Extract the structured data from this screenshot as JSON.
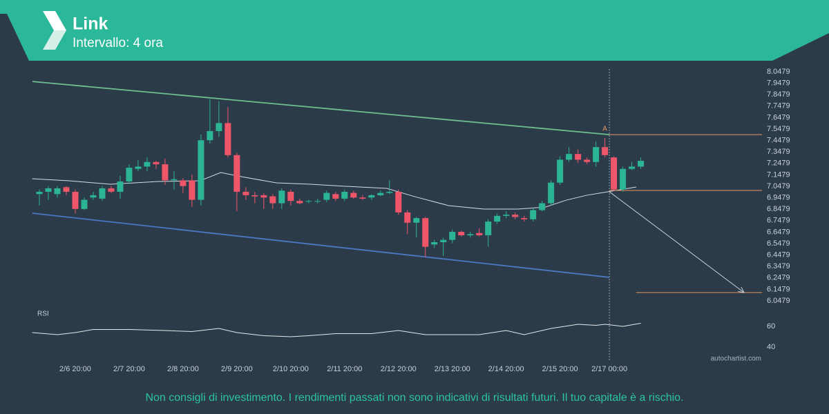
{
  "header": {
    "title": "Link",
    "subtitle": "Intervallo: 4 ora"
  },
  "footer": {
    "disclaimer": "Non consigli di investimento. I rendimenti passati non sono indicativi di risultati futuri. Il tuo capitale è a rischio.",
    "watermark": "autochartist.com"
  },
  "chart_data": {
    "type": "candlestick",
    "up_color": "#2bb594",
    "down_color": "#f0566a",
    "open": [
      6.98,
      7.0,
      6.98,
      7.04,
      7.0,
      6.85,
      6.95,
      6.94,
      7.03,
      7.0,
      7.09,
      7.2,
      7.22,
      7.26,
      7.24,
      7.1,
      7.1,
      7.1,
      6.93,
      7.45,
      7.53,
      7.6,
      7.32,
      7.0,
      6.97,
      6.97,
      6.96,
      6.9,
      7.0,
      6.92,
      6.92,
      6.92,
      6.93,
      6.98,
      6.94,
      6.99,
      6.95,
      6.95,
      6.97,
      6.99,
      7.0,
      6.82,
      6.73,
      6.77,
      6.54,
      6.56,
      6.58,
      6.65,
      6.62,
      6.64,
      6.62,
      6.74,
      6.79,
      6.8,
      6.77,
      6.76,
      6.84,
      6.9,
      7.08,
      7.28,
      7.33,
      7.28,
      7.26,
      7.39,
      7.3,
      7.02,
      7.2,
      7.22
    ],
    "high": [
      7.02,
      7.05,
      7.05,
      7.05,
      7.02,
      6.95,
      7.0,
      7.05,
      7.05,
      7.14,
      7.24,
      7.28,
      7.3,
      7.27,
      7.29,
      7.18,
      7.12,
      7.15,
      7.5,
      7.81,
      7.79,
      7.74,
      7.34,
      7.04,
      7.0,
      6.99,
      6.98,
      7.03,
      7.02,
      6.94,
      6.93,
      6.94,
      7.01,
      7.0,
      7.02,
      7.01,
      6.97,
      6.98,
      7.01,
      7.1,
      7.02,
      6.84,
      6.78,
      6.78,
      6.58,
      6.6,
      6.67,
      6.66,
      6.65,
      6.68,
      6.76,
      6.81,
      6.83,
      6.82,
      6.79,
      6.86,
      6.92,
      7.1,
      7.31,
      7.39,
      7.37,
      7.3,
      7.44,
      7.47,
      7.31,
      7.22,
      7.26,
      7.3
    ],
    "low": [
      6.88,
      6.93,
      6.95,
      6.97,
      6.81,
      6.84,
      6.93,
      6.92,
      6.99,
      6.94,
      7.07,
      7.18,
      7.18,
      7.2,
      7.06,
      7.02,
      6.99,
      6.87,
      6.88,
      7.42,
      7.48,
      7.3,
      6.83,
      6.93,
      6.9,
      6.85,
      6.85,
      6.85,
      6.88,
      6.89,
      6.9,
      6.9,
      6.91,
      6.92,
      6.92,
      6.94,
      6.93,
      6.93,
      6.96,
      6.98,
      6.8,
      6.63,
      6.6,
      6.43,
      6.51,
      6.44,
      6.55,
      6.61,
      6.6,
      6.61,
      6.52,
      6.72,
      6.77,
      6.76,
      6.74,
      6.74,
      6.83,
      6.88,
      7.06,
      7.26,
      7.25,
      7.24,
      7.22,
      7.3,
      7.01,
      7.0,
      7.19,
      7.2
    ],
    "close": [
      7.0,
      7.03,
      7.03,
      7.0,
      6.85,
      6.93,
      6.97,
      7.03,
      7.0,
      7.09,
      7.21,
      7.22,
      7.26,
      7.24,
      7.1,
      7.11,
      7.05,
      6.93,
      7.45,
      7.53,
      7.6,
      7.32,
      7.0,
      6.97,
      6.96,
      6.95,
      6.9,
      7.01,
      6.92,
      6.9,
      6.92,
      6.92,
      6.99,
      6.94,
      7.0,
      6.95,
      6.94,
      6.97,
      6.99,
      7.0,
      6.82,
      6.73,
      6.77,
      6.52,
      6.56,
      6.58,
      6.65,
      6.62,
      6.63,
      6.62,
      6.74,
      6.79,
      6.8,
      6.78,
      6.76,
      6.84,
      6.9,
      7.08,
      7.28,
      7.33,
      7.28,
      7.26,
      7.39,
      7.32,
      7.02,
      7.2,
      7.22,
      7.27
    ],
    "xlim": [
      -0.77,
      80.5
    ],
    "xticks": [
      {
        "value": 4,
        "label": "2/6 20:00"
      },
      {
        "value": 10,
        "label": "2/7 20:00"
      },
      {
        "value": 16,
        "label": "2/8 20:00"
      },
      {
        "value": 22,
        "label": "2/9 20:00"
      },
      {
        "value": 28,
        "label": "2/10 20:00"
      },
      {
        "value": 34,
        "label": "2/11 20:00"
      },
      {
        "value": 40,
        "label": "2/12 20:00"
      },
      {
        "value": 46,
        "label": "2/13 20:00"
      },
      {
        "value": 52,
        "label": "2/14 20:00"
      },
      {
        "value": 58,
        "label": "2/15 20:00"
      },
      {
        "value": 63.5,
        "label": "2/17 00:00"
      }
    ],
    "ylim": [
      6.0479,
      8.0479
    ],
    "yticks": [
      8.0479,
      7.9479,
      7.8479,
      7.7479,
      7.6479,
      7.5479,
      7.4479,
      7.3479,
      7.2479,
      7.1479,
      7.0479,
      6.9479,
      6.8479,
      6.7479,
      6.6479,
      6.5479,
      6.4479,
      6.3479,
      6.2479,
      6.1479,
      6.0479
    ],
    "overlays": [
      {
        "color": "#6fbf8e",
        "x": [
          -0.77,
          63.5
        ],
        "y": [
          7.963,
          7.499
        ]
      },
      {
        "color": "#4a78c2",
        "x": [
          -0.77,
          63.5
        ],
        "y": [
          6.813,
          6.253
        ]
      },
      {
        "color": "#d8dde2",
        "x": [
          -0.8,
          3.3,
          7.9,
          13.3,
          17.9,
          20.2,
          22.5,
          26.4,
          30.2,
          34.1,
          38.7,
          41.8,
          45.6,
          49.5,
          53.3,
          56.4,
          58.7,
          61,
          63.3,
          66.5
        ],
        "y": [
          7.114,
          7.096,
          7.066,
          7.09,
          7.096,
          7.168,
          7.132,
          7.078,
          7.066,
          7.048,
          7.03,
          6.958,
          6.879,
          6.849,
          6.849,
          6.867,
          6.927,
          6.97,
          7.0,
          7.042
        ]
      }
    ],
    "levels": [
      {
        "color": "#e8955f",
        "y": 7.499,
        "x": [
          63.5,
          80.5
        ]
      },
      {
        "color": "#e8955f",
        "y": 7.012,
        "x": [
          63.5,
          80.5
        ]
      },
      {
        "color": "#e8955f",
        "y": 6.12,
        "x": [
          66.5,
          80.5
        ]
      }
    ],
    "arrow": {
      "color": "#c9d1d9",
      "x": [
        63.5,
        78.5
      ],
      "y": [
        7.0,
        6.12
      ]
    },
    "marker_x": 63.5,
    "annotation": {
      "text": "A",
      "x": 63,
      "y": 7.55,
      "color": "#e8955f"
    },
    "rsi": {
      "label": "RSI",
      "color": "#e6eaee",
      "ylim": [
        32,
        72
      ],
      "yticks": [
        60,
        40
      ],
      "x": [
        -0.8,
        2,
        4,
        6,
        10,
        14,
        17,
        20,
        22,
        25,
        28,
        30,
        33,
        37,
        40,
        43,
        46,
        49,
        52,
        54,
        57,
        60,
        62,
        63,
        65,
        67
      ],
      "values": [
        54,
        52,
        54,
        57,
        57,
        56,
        55,
        58,
        54,
        51,
        50,
        51,
        53,
        53,
        56,
        52,
        52,
        52,
        56,
        52,
        58,
        62,
        61,
        62,
        60,
        63
      ]
    }
  }
}
